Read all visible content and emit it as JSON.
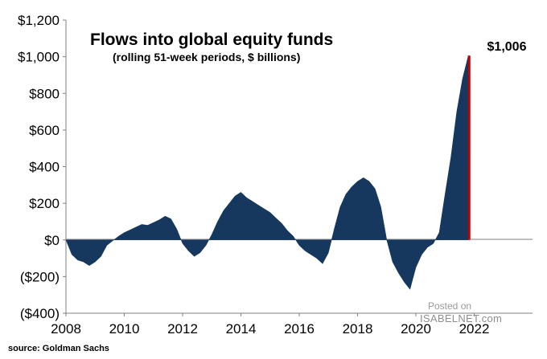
{
  "colors": {
    "area": "#17385e",
    "highlight": "#c00000",
    "axis": "#808080"
  },
  "chart_data": {
    "type": "area",
    "title": "Flows into global equity funds",
    "subtitle": "(rolling  51-week periods, $ billions)",
    "xlabel": "",
    "ylabel": "",
    "x_ticks": [
      "2008",
      "2010",
      "2012",
      "2014",
      "2016",
      "2018",
      "2020",
      "2022"
    ],
    "y_ticks": [
      "$1,200",
      "$1,000",
      "$800",
      "$600",
      "$400",
      "$200",
      "$0",
      "($200)",
      "($400)"
    ],
    "xlim": [
      2008,
      2024
    ],
    "ylim": [
      -400,
      1200
    ],
    "grid": false,
    "annotation": {
      "label": "$1,006",
      "x": 2021.8,
      "value": 1006
    },
    "series": [
      {
        "x": [
          2008.0,
          2008.2,
          2008.4,
          2008.6,
          2008.8,
          2009.0,
          2009.2,
          2009.4,
          2009.6,
          2009.8,
          2010.0,
          2010.2,
          2010.4,
          2010.6,
          2010.8,
          2011.0,
          2011.2,
          2011.4,
          2011.6,
          2011.8,
          2012.0,
          2012.2,
          2012.4,
          2012.6,
          2012.8,
          2013.0,
          2013.2,
          2013.4,
          2013.6,
          2013.8,
          2014.0,
          2014.2,
          2014.4,
          2014.6,
          2014.8,
          2015.0,
          2015.2,
          2015.4,
          2015.6,
          2015.8,
          2016.0,
          2016.2,
          2016.4,
          2016.6,
          2016.8,
          2017.0,
          2017.2,
          2017.4,
          2017.6,
          2017.8,
          2018.0,
          2018.2,
          2018.4,
          2018.6,
          2018.8,
          2019.0,
          2019.2,
          2019.4,
          2019.6,
          2019.8,
          2020.0,
          2020.2,
          2020.4,
          2020.6,
          2020.8,
          2021.0,
          2021.2,
          2021.4,
          2021.6,
          2021.8
        ],
        "values": [
          0,
          -80,
          -110,
          -120,
          -140,
          -120,
          -90,
          -30,
          -5,
          20,
          40,
          55,
          70,
          85,
          80,
          95,
          110,
          130,
          115,
          60,
          -20,
          -60,
          -90,
          -70,
          -30,
          30,
          100,
          160,
          200,
          240,
          260,
          230,
          210,
          190,
          170,
          150,
          120,
          90,
          50,
          20,
          -30,
          -60,
          -80,
          -100,
          -130,
          -70,
          60,
          180,
          250,
          290,
          320,
          340,
          320,
          280,
          180,
          0,
          -120,
          -180,
          -230,
          -270,
          -150,
          -80,
          -40,
          -20,
          40,
          250,
          450,
          700,
          880,
          1006
        ]
      }
    ]
  },
  "source": "source: Goldman Sachs",
  "watermark": {
    "posted": "Posted on",
    "site": "ISABELNET.com"
  }
}
